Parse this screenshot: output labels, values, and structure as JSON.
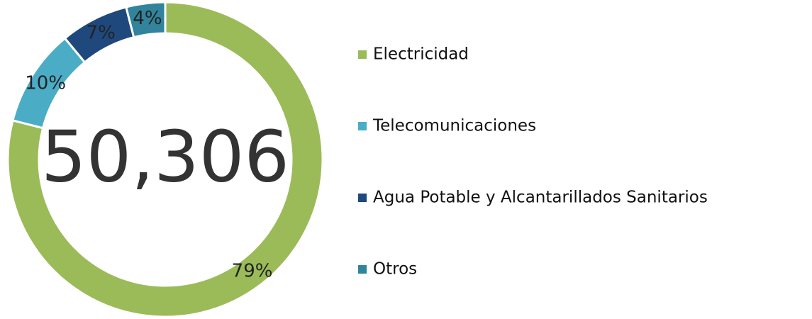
{
  "chart_data": {
    "type": "pie",
    "donut": true,
    "center_text": "50,306",
    "categories": [
      "Electricidad",
      "Telecomunicaciones",
      "Agua Potable y Alcantarillados Sanitarios",
      "Otros"
    ],
    "values": [
      79,
      10,
      7,
      4
    ],
    "value_labels": [
      "79%",
      "10%",
      "7%",
      "4%"
    ],
    "colors": [
      "#9bbb59",
      "#4bacc6",
      "#1f497d",
      "#31849b"
    ],
    "legend": "right"
  }
}
